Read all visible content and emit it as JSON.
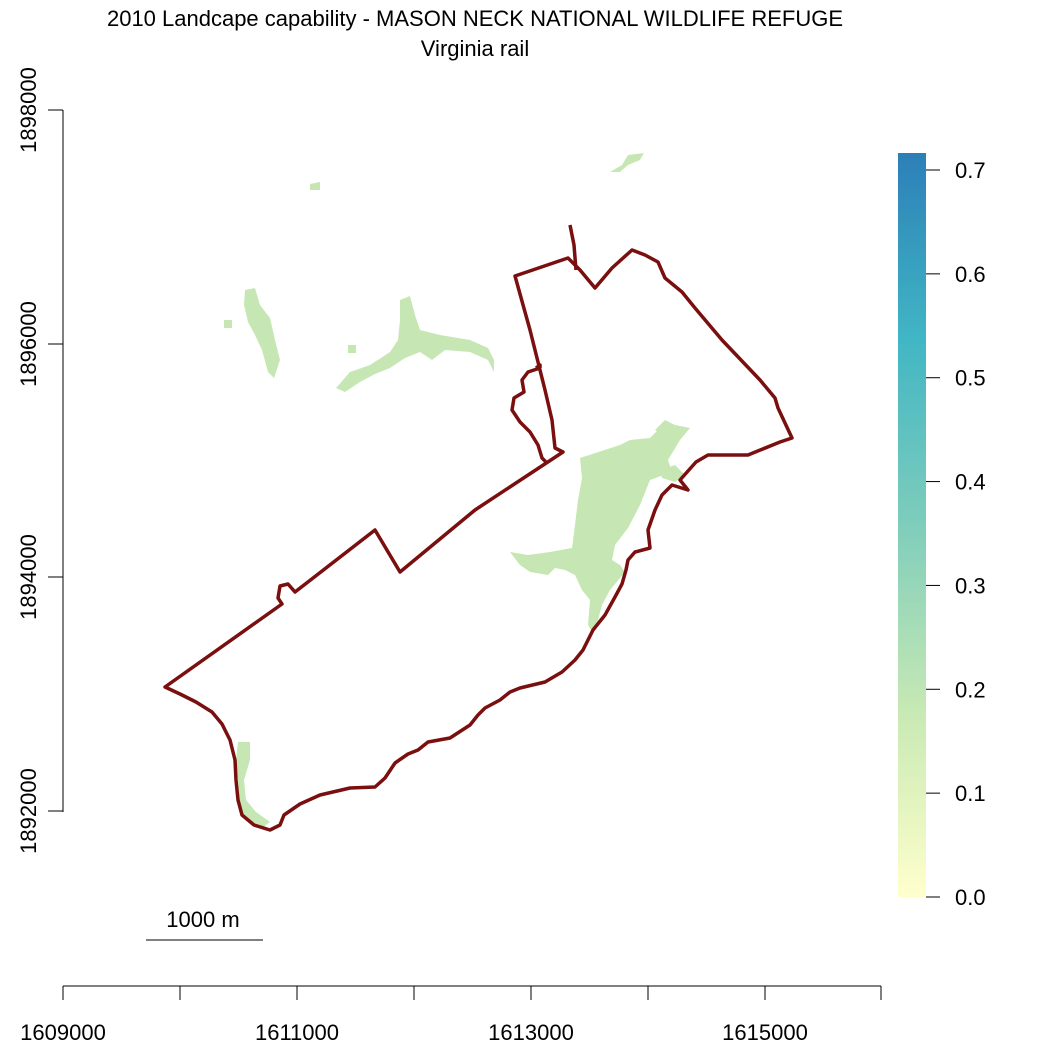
{
  "title_line1": "2010 Landcape capability - MASON NECK NATIONAL WILDLIFE REFUGE",
  "title_line2": "Virginia rail",
  "x_axis": {
    "ticks": [
      "1609000",
      "1611000",
      "1613000",
      "1615000"
    ]
  },
  "y_axis": {
    "ticks": [
      "1892000",
      "1894000",
      "1896000",
      "1898000"
    ]
  },
  "scalebar": {
    "label": "1000 m"
  },
  "legend": {
    "labels": [
      "0.0",
      "0.1",
      "0.2",
      "0.3",
      "0.4",
      "0.5",
      "0.6",
      "0.7"
    ],
    "colors": [
      "#ffffcc",
      "#c7e9b4",
      "#7fcdbb",
      "#41b6c4",
      "#2c7fb8"
    ]
  },
  "colors": {
    "boundary": "#7a0f0f",
    "raster": "#c6e7b4"
  }
}
